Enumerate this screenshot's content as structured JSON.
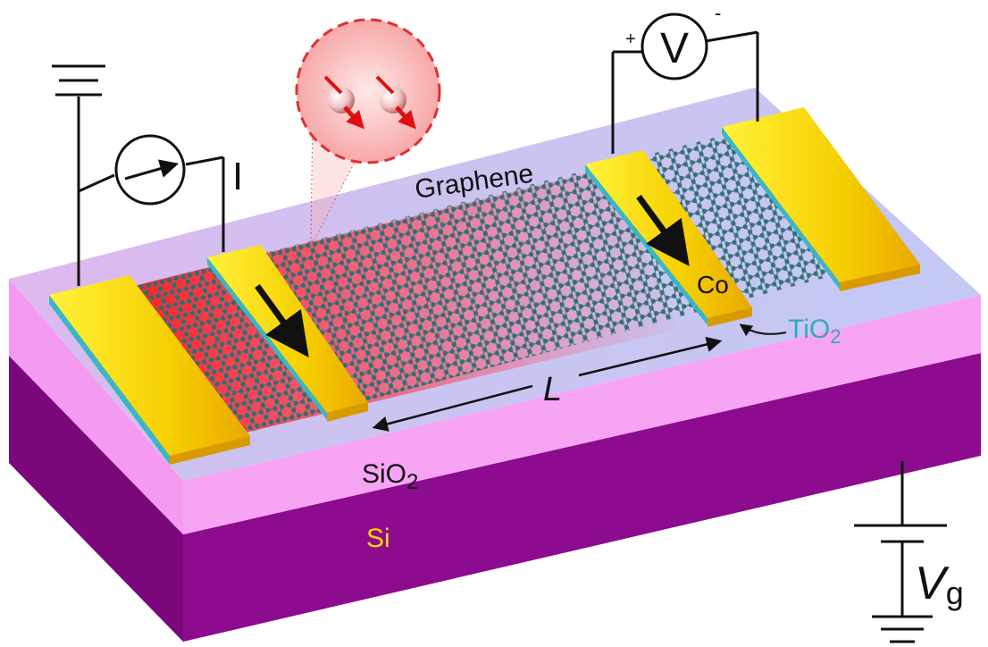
{
  "labels": {
    "current": "I",
    "voltage": "V",
    "plus": "+",
    "minus": "-",
    "graphene": "Graphene",
    "length": "L",
    "co": "Co",
    "tio2_main": "TiO",
    "tio2_sub": "2",
    "sio2_main": "SiO",
    "sio2_sub": "2",
    "si": "Si",
    "vg_main": "V",
    "vg_sub": "g"
  },
  "colors": {
    "si": "#8b0a8b",
    "sio2": "#f59ff2",
    "top_surface": "#cfc3f2",
    "electrode": "#f5d800",
    "spin_channel": "#ff2a2a",
    "graphene_atom": "#2e6b6e",
    "tio2_text": "#3aa7b8",
    "si_text": "#ffd400"
  }
}
